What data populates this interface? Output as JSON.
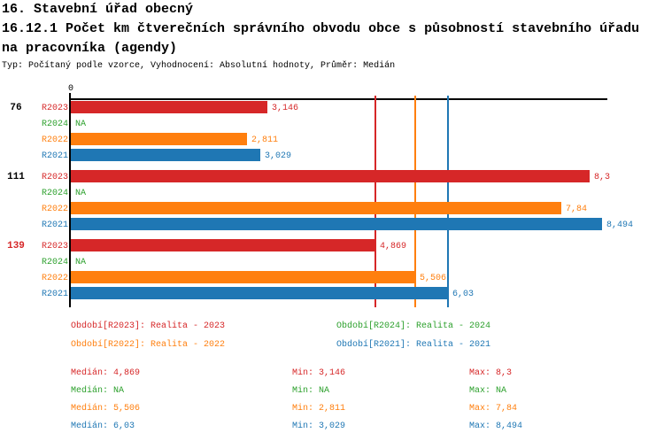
{
  "header": {
    "title_line1": "16. Stavební úřad obecný",
    "title_line2": "16.12.1 Počet km čtverečních správního obvodu obce s působností stavebního úřadu",
    "title_line3": "na pracovníka (agendy)",
    "meta": "Typ: Počítaný podle vzorce, Vyhodnocení: Absolutní hodnoty, Průměr: Medián"
  },
  "colors": {
    "R2023": "#d62728",
    "R2024": "#2ca02c",
    "R2022": "#ff7f0e",
    "R2021": "#1f77b4",
    "axis": "#000000",
    "group_label": "#000000",
    "group_label_highlight": "#d62728"
  },
  "chart_data": {
    "type": "bar",
    "orientation": "horizontal",
    "title": "16.12.1 Počet km čtverečních správního obvodu obce s působností stavebního úřadu na pracovníka (agendy)",
    "value_axis": {
      "min": 0,
      "max": 8.58,
      "zero_label": "0",
      "grid": false
    },
    "series_order": [
      "R2023",
      "R2024",
      "R2022",
      "R2021"
    ],
    "categories": [
      "76",
      "111",
      "139"
    ],
    "groups": [
      {
        "id": "76",
        "highlighted": false,
        "bars": [
          {
            "series": "R2023",
            "value": 3.146,
            "label": "3,146"
          },
          {
            "series": "R2024",
            "value": null,
            "label": "NA"
          },
          {
            "series": "R2022",
            "value": 2.811,
            "label": "2,811"
          },
          {
            "series": "R2021",
            "value": 3.029,
            "label": "3,029"
          }
        ]
      },
      {
        "id": "111",
        "highlighted": false,
        "bars": [
          {
            "series": "R2023",
            "value": 8.3,
            "label": "8,3"
          },
          {
            "series": "R2024",
            "value": null,
            "label": "NA"
          },
          {
            "series": "R2022",
            "value": 7.84,
            "label": "7,84"
          },
          {
            "series": "R2021",
            "value": 8.494,
            "label": "8,494"
          }
        ]
      },
      {
        "id": "139",
        "highlighted": true,
        "bars": [
          {
            "series": "R2023",
            "value": 4.869,
            "label": "4,869"
          },
          {
            "series": "R2024",
            "value": null,
            "label": "NA"
          },
          {
            "series": "R2022",
            "value": 5.506,
            "label": "5,506"
          },
          {
            "series": "R2021",
            "value": 6.03,
            "label": "6,03"
          }
        ]
      }
    ],
    "median_lines": [
      {
        "series": "R2023",
        "value": 4.869
      },
      {
        "series": "R2022",
        "value": 5.506
      },
      {
        "series": "R2021",
        "value": 6.03
      }
    ]
  },
  "legend": {
    "items": [
      {
        "series": "R2023",
        "label": "Období[R2023]: Realita - 2023",
        "col": 0,
        "row": 0
      },
      {
        "series": "R2024",
        "label": "Období[R2024]: Realita - 2024",
        "col": 1,
        "row": 0
      },
      {
        "series": "R2022",
        "label": "Období[R2022]: Realita - 2022",
        "col": 0,
        "row": 1
      },
      {
        "series": "R2021",
        "label": "Období[R2021]: Realita - 2021",
        "col": 1,
        "row": 1
      }
    ]
  },
  "stats": {
    "rows": [
      {
        "series": "R2023",
        "median": "Medián: 4,869",
        "min": "Min: 3,146",
        "max": "Max: 8,3"
      },
      {
        "series": "R2024",
        "median": "Medián: NA",
        "min": "Min: NA",
        "max": "Max: NA"
      },
      {
        "series": "R2022",
        "median": "Medián: 5,506",
        "min": "Min: 2,811",
        "max": "Max: 7,84"
      },
      {
        "series": "R2021",
        "median": "Medián: 6,03",
        "min": "Min: 3,029",
        "max": "Max: 8,494"
      }
    ]
  }
}
